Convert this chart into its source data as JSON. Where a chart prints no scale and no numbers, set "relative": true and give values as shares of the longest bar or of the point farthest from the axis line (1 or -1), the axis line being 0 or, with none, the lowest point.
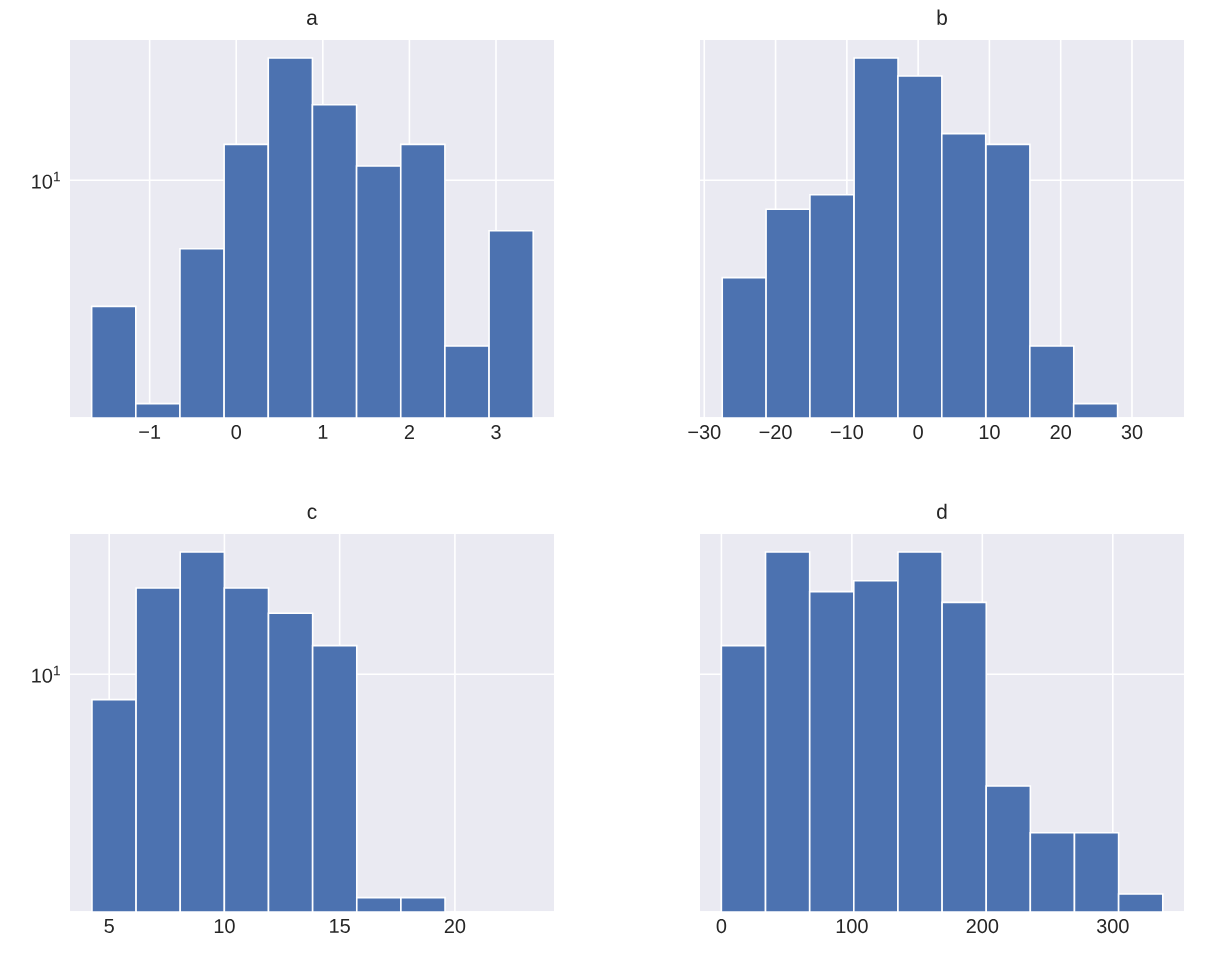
{
  "chart_data": [
    {
      "type": "bar",
      "title": "a",
      "relative": true,
      "x": [
        -1.415,
        -0.905,
        -0.395,
        0.115,
        0.625,
        1.135,
        1.645,
        2.155,
        2.665,
        3.175
      ],
      "values": [
        0.31,
        0.04,
        0.47,
        0.76,
        1,
        0.87,
        0.7,
        0.76,
        0.2,
        0.52
      ],
      "color": "#4c72b0",
      "xlim": [
        -1.92,
        3.67
      ],
      "xticks": [
        {
          "value": -1,
          "label": "−1"
        },
        {
          "value": 0,
          "label": "0"
        },
        {
          "value": 1,
          "label": "1"
        },
        {
          "value": 2,
          "label": "2"
        },
        {
          "value": 3,
          "label": "3"
        }
      ],
      "grid": true,
      "annotations": [
        "10$^{1}$"
      ]
    },
    {
      "type": "bar",
      "title": "b",
      "relative": true,
      "x": [
        -24.4,
        -18.25,
        -12.1,
        -5.9,
        0.25,
        6.4,
        12.6,
        18.75,
        24.9
      ],
      "values": [
        0.39,
        0.58,
        0.62,
        1,
        0.95,
        0.79,
        0.76,
        0.2,
        0.04
      ],
      "color": "#4c72b0",
      "xlim": [
        -30.6,
        37.3
      ],
      "xticks": [
        {
          "value": -30,
          "label": "−30"
        },
        {
          "value": -20,
          "label": "−20"
        },
        {
          "value": -10,
          "label": "−10"
        },
        {
          "value": 0,
          "label": "0"
        },
        {
          "value": 10,
          "label": "10"
        },
        {
          "value": 20,
          "label": "20"
        },
        {
          "value": 30,
          "label": "30"
        }
      ],
      "grid": true
    },
    {
      "type": "bar",
      "title": "c",
      "relative": true,
      "x": [
        5.21,
        7.125,
        9.04,
        10.955,
        12.87,
        14.785,
        16.7,
        18.615
      ],
      "values": [
        0.59,
        0.9,
        1,
        0.9,
        0.83,
        0.74,
        0.04,
        0.04
      ],
      "color": "#4c72b0",
      "xlim": [
        3.3,
        24.3
      ],
      "xticks": [
        {
          "value": 5,
          "label": "5"
        },
        {
          "value": 10,
          "label": "10"
        },
        {
          "value": 15,
          "label": "15"
        },
        {
          "value": 20,
          "label": "20"
        }
      ],
      "grid": true,
      "annotations": [
        "10$^{1}$"
      ]
    },
    {
      "type": "bar",
      "title": "d",
      "relative": true,
      "x": [
        16.9,
        50.75,
        84.6,
        118.4,
        152.25,
        186.1,
        219.9,
        253.7,
        287.55,
        321.4
      ],
      "values": [
        0.74,
        1,
        0.89,
        0.92,
        1,
        0.86,
        0.35,
        0.22,
        0.22,
        0.05
      ],
      "color": "#4c72b0",
      "xlim": [
        -16.4,
        354.6
      ],
      "xticks": [
        {
          "value": 0,
          "label": "0"
        },
        {
          "value": 100,
          "label": "100"
        },
        {
          "value": 200,
          "label": "200"
        },
        {
          "value": 300,
          "label": "300"
        }
      ],
      "grid": true
    }
  ]
}
